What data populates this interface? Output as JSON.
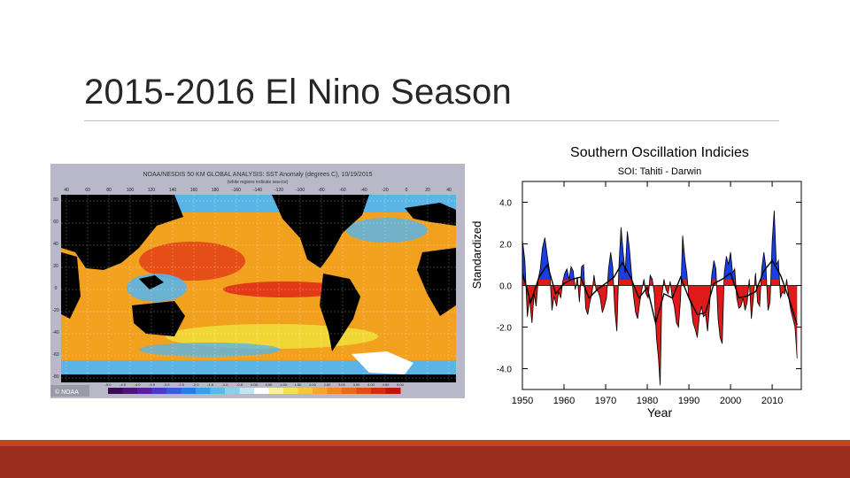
{
  "slide": {
    "title": "2015-2016 El Nino Season"
  },
  "sst_map": {
    "header": "NOAA/NESDIS 50 KM GLOBAL ANALYSIS: SST Anomaly (degrees C), 10/19/2015",
    "subheader": "(white regions indicate sea-ice)",
    "lon_labels": [
      "40",
      "60",
      "80",
      "100",
      "120",
      "140",
      "160",
      "180",
      "-160",
      "-140",
      "-120",
      "-100",
      "-80",
      "-60",
      "-40",
      "-20",
      "0",
      "20",
      "40"
    ],
    "lat_labels": [
      "80",
      "60",
      "40",
      "20",
      "0",
      "-20",
      "-40",
      "-60",
      "-80"
    ],
    "colorbar_labels": [
      "-5.0",
      "-4.5",
      "-4.0",
      "-3.5",
      "-3.0",
      "-2.5",
      "-2.0",
      "-1.5",
      "-1.0",
      "-0.5",
      "0.00",
      "0.50",
      "1.00",
      "1.50",
      "2.00",
      "2.50",
      "3.00",
      "3.50",
      "4.00",
      "4.50",
      "5.00"
    ],
    "credit": "© NOAA",
    "colors": {
      "land": "#000000",
      "warm": "#f2a11e",
      "hot": "#e23a17",
      "neutral": "#f0e53c",
      "cool": "#5ab4e6",
      "cold": "#2a62c9",
      "ice": "#ffffff",
      "frame": "#9a9aa8"
    }
  },
  "chart_data": {
    "type": "area",
    "title": "Southern Oscillation Indicies",
    "subtitle": "SOI: Tahiti - Darwin",
    "xlabel": "Year",
    "ylabel": "Standardized",
    "xlim": [
      1950,
      2017
    ],
    "ylim": [
      -5.0,
      5.0
    ],
    "xticks": [
      "1950",
      "1960",
      "1970",
      "1980",
      "1990",
      "2000",
      "2010"
    ],
    "yticks": [
      "4.0",
      "2.0",
      "0.0",
      "-2.0",
      "-4.0"
    ],
    "positive_color": "#1a3ee0",
    "negative_color": "#e01a1a",
    "series": [
      {
        "name": "",
        "kind": "monthly-anomaly",
        "x": [
          1950,
          1950.6,
          1951.2,
          1951.7,
          1952.3,
          1952.8,
          1953.3,
          1953.8,
          1954.3,
          1954.8,
          1955.4,
          1956,
          1956.6,
          1957.1,
          1957.6,
          1958.2,
          1958.7,
          1959.2,
          1959.7,
          1960.2,
          1960.7,
          1961.2,
          1961.7,
          1962.2,
          1962.7,
          1963.2,
          1963.7,
          1964.2,
          1964.7,
          1965.2,
          1965.7,
          1966.2,
          1966.7,
          1967.2,
          1967.7,
          1968.2,
          1968.7,
          1969.2,
          1969.7,
          1970.2,
          1970.7,
          1971.2,
          1971.7,
          1972.2,
          1972.7,
          1973.2,
          1973.7,
          1974.2,
          1974.7,
          1975.2,
          1975.7,
          1976.2,
          1976.7,
          1977.2,
          1977.7,
          1978.2,
          1978.7,
          1979.2,
          1979.7,
          1980.2,
          1980.7,
          1981.2,
          1981.7,
          1982.2,
          1982.7,
          1983.1,
          1983.5,
          1984,
          1984.5,
          1985,
          1985.5,
          1986,
          1986.5,
          1987,
          1987.5,
          1988,
          1988.5,
          1989,
          1989.5,
          1990,
          1990.5,
          1991,
          1991.5,
          1992,
          1992.5,
          1993,
          1993.5,
          1994,
          1994.5,
          1995,
          1995.5,
          1996,
          1996.5,
          1997,
          1997.5,
          1998,
          1998.5,
          1999,
          1999.5,
          2000,
          2000.5,
          2001,
          2001.5,
          2002,
          2002.5,
          2003,
          2003.5,
          2004,
          2004.5,
          2005,
          2005.5,
          2006,
          2006.5,
          2007,
          2007.5,
          2008,
          2008.5,
          2009,
          2009.5,
          2010,
          2010.5,
          2011,
          2011.5,
          2012,
          2012.5,
          2013,
          2013.5,
          2014,
          2014.5,
          2015,
          2015.5,
          2016
        ],
        "y": [
          2.2,
          1.2,
          -1.5,
          -0.6,
          -1.8,
          -0.4,
          -1.0,
          0.3,
          0.8,
          1.8,
          2.3,
          1.4,
          0.6,
          -1.2,
          -0.5,
          -1.0,
          -0.3,
          -0.6,
          0.2,
          0.6,
          0.8,
          0.3,
          0.9,
          0.7,
          -0.2,
          0.4,
          -0.8,
          0.9,
          1.0,
          -1.1,
          -1.4,
          -0.8,
          -0.4,
          0.5,
          -0.2,
          -0.3,
          -0.6,
          -1.3,
          -1.0,
          -0.6,
          0.8,
          1.6,
          0.9,
          -1.2,
          -2.2,
          1.0,
          2.8,
          1.6,
          0.6,
          2.6,
          1.8,
          0.6,
          -0.5,
          -1.3,
          -1.6,
          -0.8,
          -0.2,
          0.3,
          -0.4,
          -0.6,
          0.5,
          0.3,
          -0.4,
          -2.5,
          -3.5,
          -4.8,
          -0.5,
          0.3,
          -0.2,
          -0.4,
          0.2,
          -0.6,
          -1.0,
          -1.8,
          -2.0,
          -0.6,
          2.4,
          1.3,
          0.6,
          -0.6,
          -0.9,
          -1.8,
          -2.1,
          -2.5,
          -1.5,
          -1.0,
          -1.5,
          -1.4,
          -2.2,
          -0.8,
          0.5,
          1.2,
          0.8,
          -1.6,
          -2.5,
          -2.8,
          0.6,
          1.4,
          1.0,
          1.6,
          0.6,
          0.8,
          -0.6,
          -1.1,
          -1.0,
          -0.6,
          -1.2,
          -0.8,
          0.3,
          -1.6,
          -0.6,
          0.6,
          -0.8,
          -1.0,
          0.8,
          1.6,
          0.9,
          -1.2,
          -0.8,
          2.1,
          3.6,
          1.0,
          1.2,
          -0.6,
          -0.3,
          -0.4,
          0.3,
          -0.6,
          -1.2,
          -1.6,
          -2.0,
          -3.5
        ]
      },
      {
        "name": "",
        "kind": "smoothed",
        "x": [
          1950,
          1952,
          1954,
          1956,
          1958,
          1960,
          1962,
          1964,
          1966,
          1968,
          1970,
          1972,
          1974,
          1976,
          1978,
          1980,
          1982,
          1984,
          1986,
          1988,
          1990,
          1992,
          1994,
          1996,
          1998,
          2000,
          2002,
          2004,
          2006,
          2008,
          2010,
          2012,
          2014,
          2016
        ],
        "y": [
          0.6,
          -0.8,
          0.4,
          1.0,
          -0.4,
          0.1,
          0.3,
          0.4,
          -0.6,
          -0.2,
          0.1,
          0.4,
          1.1,
          0.4,
          -0.6,
          -0.1,
          -1.8,
          -0.4,
          -0.6,
          0.4,
          -0.6,
          -1.4,
          -1.3,
          0.1,
          0.3,
          0.6,
          -0.6,
          -0.5,
          -0.3,
          0.7,
          1.2,
          0.5,
          -0.6,
          -1.9
        ]
      }
    ]
  }
}
